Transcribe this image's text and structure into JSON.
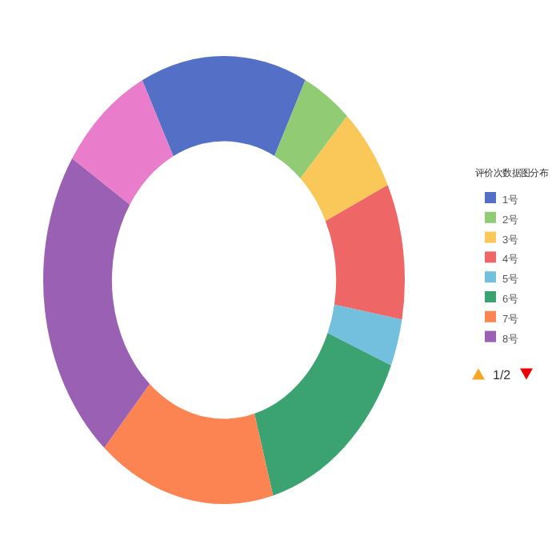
{
  "chart_data": {
    "type": "donut",
    "legend_title": "评价次数据图分布",
    "legend": "right",
    "categories": [
      "1号",
      "2号",
      "3号",
      "4号",
      "5号",
      "6号",
      "7号",
      "8号",
      null
    ],
    "values": [
      14.9,
      4.5,
      6.1,
      9.8,
      3.4,
      14.4,
      15.9,
      22.6,
      8.4
    ],
    "colors": [
      "#5470c6",
      "#91cc75",
      "#fac858",
      "#ee6666",
      "#73c0de",
      "#3ba272",
      "#fc8452",
      "#9a60b4",
      "#ea7ccc"
    ],
    "annotations": [
      "1/2"
    ]
  }
}
